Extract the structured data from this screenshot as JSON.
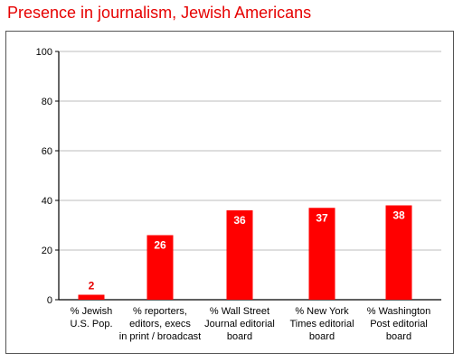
{
  "chart_data": {
    "type": "bar",
    "title": "Presence in journalism, Jewish Americans",
    "categories": [
      [
        "%  Jewish",
        "U.S.  Pop."
      ],
      [
        "% reporters,",
        "editors, execs",
        "in print / broadcast"
      ],
      [
        "% Wall Street",
        "Journal editorial",
        "board"
      ],
      [
        "% New York",
        "Times editorial",
        "board"
      ],
      [
        "% Washington",
        "Post editorial",
        "board"
      ]
    ],
    "values": [
      2,
      26,
      36,
      37,
      38
    ],
    "value_labels": [
      "2",
      "26",
      "36",
      "37",
      "38"
    ],
    "ylim": [
      0,
      100
    ],
    "yticks": [
      0,
      20,
      40,
      60,
      80,
      100
    ],
    "grid": true,
    "bar_color": "#ff0000",
    "title_color": "#e60000"
  }
}
